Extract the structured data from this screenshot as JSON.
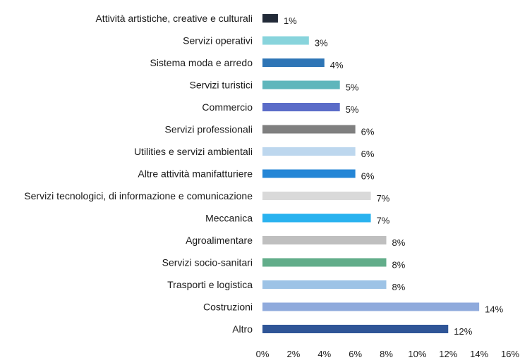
{
  "chart_data": {
    "type": "bar",
    "orientation": "horizontal",
    "categories": [
      "Attività artistiche, creative e culturali",
      "Servizi operativi",
      "Sistema moda e arredo",
      "Servizi turistici",
      "Commercio",
      "Servizi professionali",
      "Utilities e servizi ambientali",
      "Altre attività manifatturiere",
      "Servizi tecnologici, di informazione e comunicazione",
      "Meccanica",
      "Agroalimentare",
      "Servizi socio-sanitari",
      "Trasporti e logistica",
      "Costruzioni",
      "Altro"
    ],
    "values": [
      1,
      3,
      4,
      5,
      5,
      6,
      6,
      6,
      7,
      7,
      8,
      8,
      8,
      14,
      12
    ],
    "data_labels": [
      "1%",
      "3%",
      "4%",
      "5%",
      "5%",
      "6%",
      "6%",
      "6%",
      "7%",
      "7%",
      "8%",
      "8%",
      "8%",
      "14%",
      "12%"
    ],
    "bar_colors": [
      "#222a38",
      "#88d4dc",
      "#2e75b6",
      "#5fb6bc",
      "#5b6cc8",
      "#7f7f7f",
      "#bdd7ee",
      "#2486d6",
      "#d9d9d9",
      "#29b2ef",
      "#bfbfbf",
      "#62ad8a",
      "#9dc3e6",
      "#8faadc",
      "#2f5597"
    ],
    "xlim": [
      0,
      16
    ],
    "x_ticks": [
      0,
      2,
      4,
      6,
      8,
      10,
      12,
      14,
      16
    ],
    "x_tick_labels": [
      "0%",
      "2%",
      "4%",
      "6%",
      "8%",
      "10%",
      "12%",
      "14%",
      "16%"
    ],
    "grid": false,
    "legend": "none"
  }
}
